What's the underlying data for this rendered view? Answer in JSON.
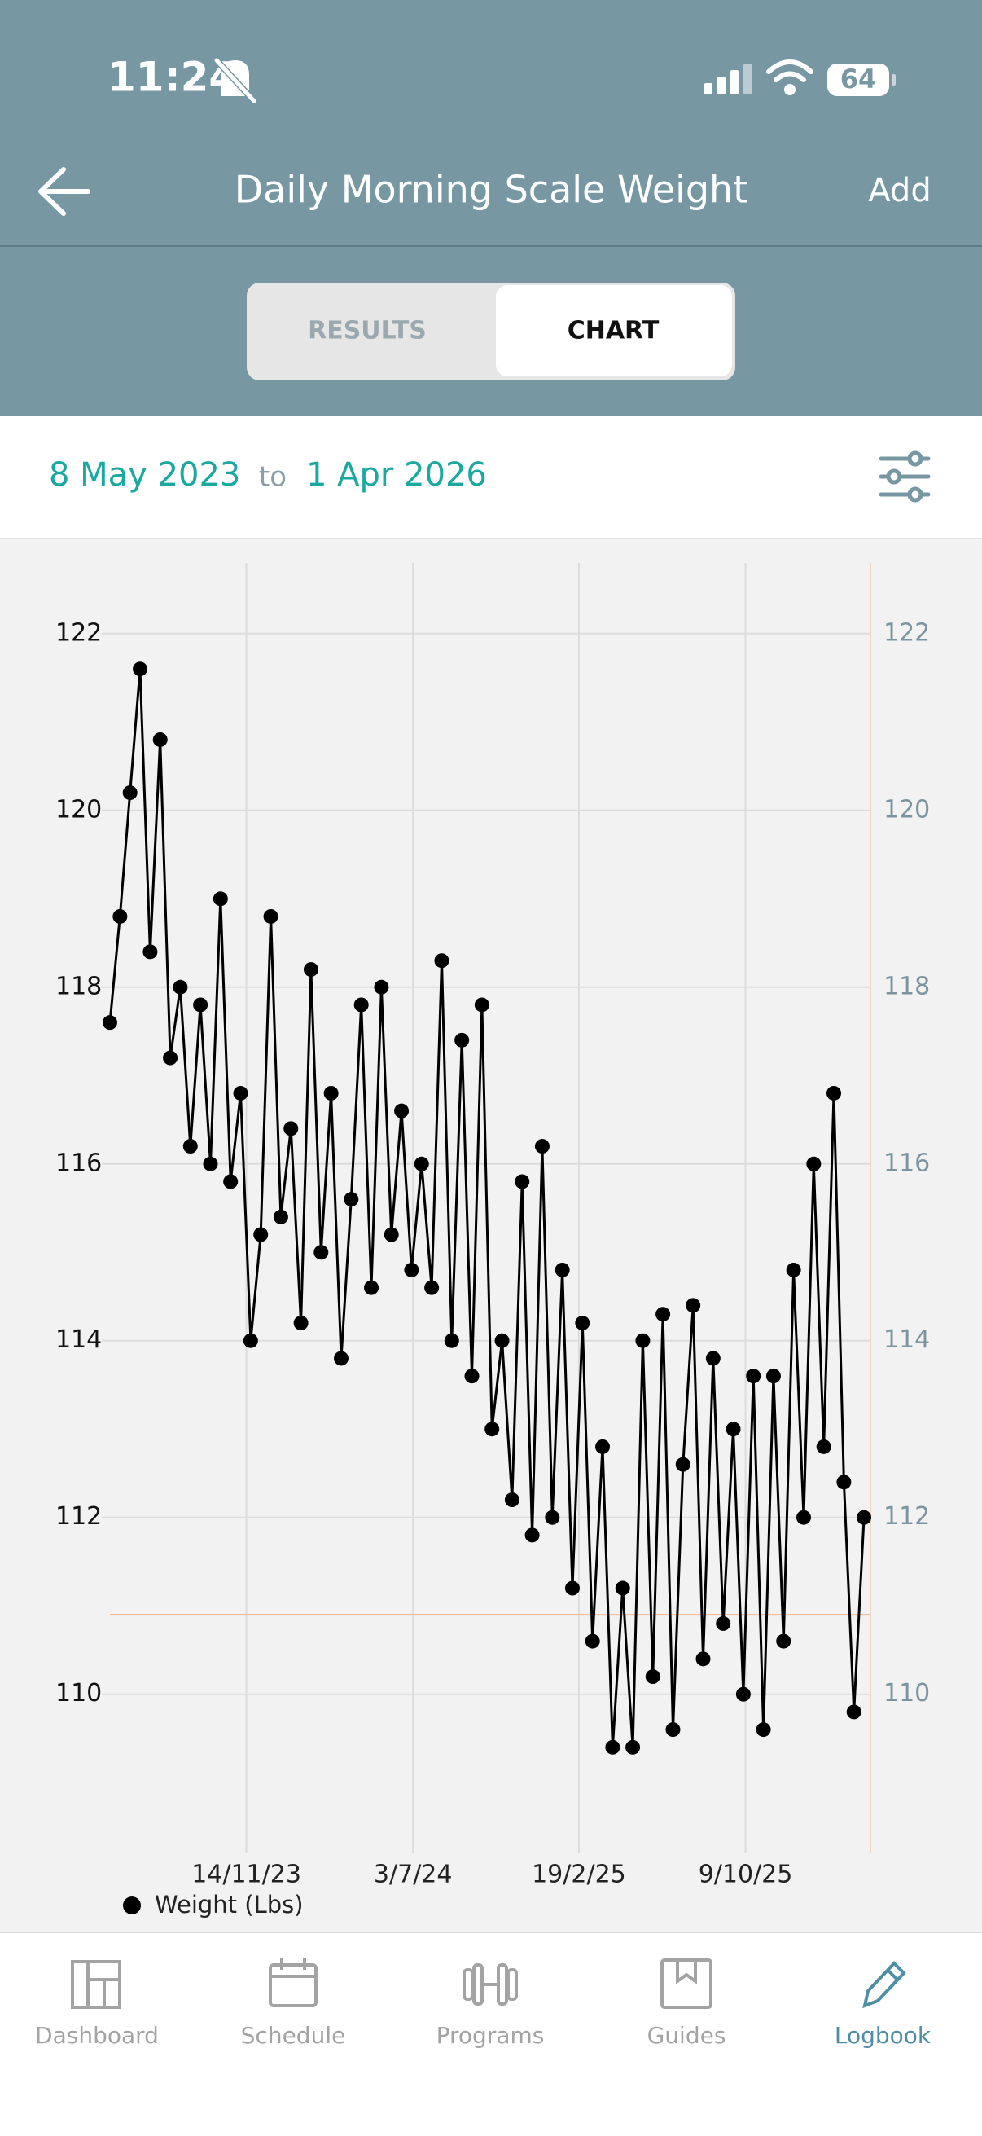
{
  "status_bar": {
    "time": "11:24",
    "battery": "64"
  },
  "header": {
    "title": "Daily Morning Scale Weight",
    "action": "Add"
  },
  "tabs": [
    "RESULTS",
    "CHART"
  ],
  "date_range": {
    "from": "8 May 2023",
    "separator": "to",
    "to": "1 Apr 2026"
  },
  "chart_data": {
    "type": "line",
    "markers": true,
    "grid": true,
    "x": [
      "2023-05-08",
      "2023-05-22",
      "2023-06-05",
      "2023-06-19",
      "2023-07-03",
      "2023-07-17",
      "2023-07-31",
      "2023-08-14",
      "2023-08-28",
      "2023-09-11",
      "2023-09-25",
      "2023-10-09",
      "2023-10-23",
      "2023-11-06",
      "2023-11-20",
      "2023-12-04",
      "2023-12-18",
      "2024-01-01",
      "2024-01-15",
      "2024-01-29",
      "2024-02-12",
      "2024-02-26",
      "2024-03-11",
      "2024-03-25",
      "2024-04-08",
      "2024-04-22",
      "2024-05-06",
      "2024-05-20",
      "2024-06-03",
      "2024-06-17",
      "2024-07-01",
      "2024-07-15",
      "2024-07-29",
      "2024-08-12",
      "2024-08-26",
      "2024-09-09",
      "2024-09-23",
      "2024-10-07",
      "2024-10-21",
      "2024-11-04",
      "2024-11-18",
      "2024-12-02",
      "2024-12-16",
      "2024-12-30",
      "2025-01-13",
      "2025-01-27",
      "2025-02-10",
      "2025-02-24",
      "2025-03-10",
      "2025-03-24",
      "2025-04-07",
      "2025-04-21",
      "2025-05-05",
      "2025-05-19",
      "2025-06-02",
      "2025-06-16",
      "2025-06-30",
      "2025-07-14",
      "2025-07-28",
      "2025-08-11",
      "2025-08-25",
      "2025-09-08",
      "2025-09-22",
      "2025-10-06",
      "2025-10-20",
      "2025-11-03",
      "2025-11-17",
      "2025-12-01",
      "2025-12-15",
      "2025-12-29",
      "2026-01-12",
      "2026-01-26",
      "2026-02-09",
      "2026-02-23",
      "2026-03-09",
      "2026-03-23"
    ],
    "series": [
      {
        "name": "Weight  (Lbs)",
        "color": "#000000",
        "values": [
          117.6,
          118.8,
          120.2,
          121.6,
          118.4,
          120.8,
          117.2,
          118.0,
          116.2,
          117.8,
          116.0,
          119.0,
          115.8,
          116.8,
          114.0,
          115.2,
          118.8,
          115.4,
          116.4,
          114.2,
          118.2,
          115.0,
          116.8,
          113.8,
          115.6,
          117.8,
          114.6,
          118.0,
          115.2,
          116.6,
          114.8,
          116.0,
          114.6,
          118.3,
          114.0,
          117.4,
          113.6,
          117.8,
          113.0,
          114.0,
          112.2,
          115.8,
          111.8,
          116.2,
          112.0,
          114.8,
          111.2,
          114.2,
          110.6,
          112.8,
          109.4,
          111.2,
          109.4,
          114.0,
          110.2,
          114.3,
          109.6,
          112.6,
          114.4,
          110.4,
          113.8,
          110.8,
          113.0,
          110.0,
          113.6,
          109.6,
          113.6,
          110.6,
          114.8,
          112.0,
          116.0,
          112.8,
          116.8,
          112.4,
          109.8,
          112.0
        ]
      }
    ],
    "xlim": [
      "2023-05-08",
      "2026-04-01"
    ],
    "xticks": [
      {
        "value": "2023-11-14",
        "label": "14/11/23"
      },
      {
        "value": "2024-07-03",
        "label": "3/7/24"
      },
      {
        "value": "2025-02-19",
        "label": "19/2/25"
      },
      {
        "value": "2025-10-09",
        "label": "9/10/25"
      }
    ],
    "ylim": [
      108.2,
      122.8
    ],
    "yticks": [
      110,
      112,
      114,
      116,
      118,
      120,
      122
    ],
    "y2lim": [
      108.2,
      122.8
    ],
    "y2ticks": [
      110,
      112,
      114,
      116,
      118,
      120,
      122
    ],
    "reference_line": {
      "value": 110.9,
      "color": "#f5b98c"
    }
  },
  "nav": [
    "Dashboard",
    "Schedule",
    "Programs",
    "Guides",
    "Logbook"
  ]
}
